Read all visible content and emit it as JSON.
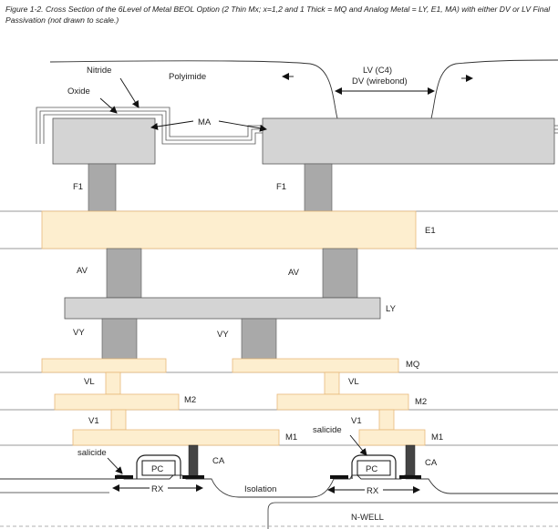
{
  "caption": "Figure 1-2. Cross Section of the 6Level of Metal BEOL Option (2 Thin Mx; x=1,2 and 1 Thick = MQ and Analog Metal = LY, E1, MA) with either DV or LV Final Passivation (not drawn to scale.)",
  "labels": {
    "nitride": "Nitride",
    "oxide": "Oxide",
    "polyimide": "Polyimide",
    "lv_line1": "LV (C4)",
    "lv_line2": "DV (wirebond)",
    "ma": "MA",
    "f1_left": "F1",
    "f1_right": "F1",
    "e1": "E1",
    "av_left": "AV",
    "av_right": "AV",
    "ly": "LY",
    "vy_left": "VY",
    "vy_right": "VY",
    "mq": "MQ",
    "vl_left": "VL",
    "vl_right": "VL",
    "m2_left": "M2",
    "m2_right": "M2",
    "v1_left": "V1",
    "v1_right": "V1",
    "m1_left": "M1",
    "m1_right": "M1",
    "salicide_left": "salicide",
    "salicide_right": "salicide",
    "pc_left": "PC",
    "pc_right": "PC",
    "ca_left": "CA",
    "ca_right": "CA",
    "rx_left": "RX",
    "rx_right": "RX",
    "isolation": "Isolation",
    "nwell": "N-WELL"
  },
  "colors": {
    "metal_light": "#fdeecf",
    "metal_border": "#e8b97a",
    "gray_block": "#d4d4d4",
    "via_gray": "#a9a9a9",
    "ca_dark": "#444444",
    "line": "#333333"
  }
}
